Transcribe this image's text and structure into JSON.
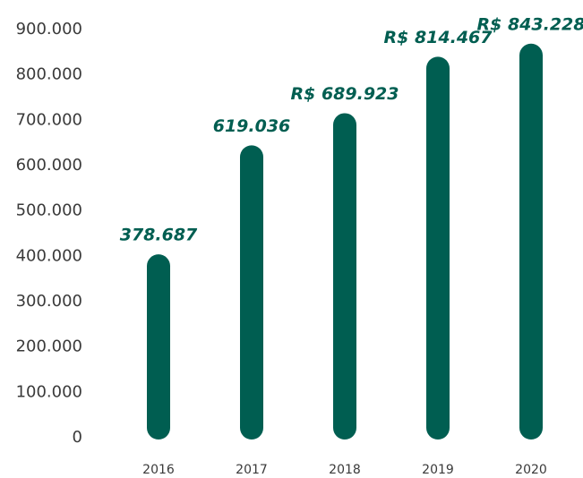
{
  "chart_data": {
    "type": "bar",
    "categories": [
      "2016",
      "2017",
      "2018",
      "2019",
      "2020"
    ],
    "values": [
      378687,
      619036,
      689923,
      814467,
      843228
    ],
    "value_labels": [
      "378.687",
      "619.036",
      "R$ 689.923",
      "R$ 814.467",
      "R$ 843.228"
    ],
    "color": "#005e51",
    "ylim": [
      0,
      900000
    ],
    "yticks": [
      0,
      {
        "value": 100000,
        "label": "100.000"
      },
      {
        "value": 200000,
        "label": "200.000"
      },
      {
        "value": 300000,
        "label": "300.000"
      },
      {
        "value": 400000,
        "label": "400.000"
      },
      {
        "value": 500000,
        "label": "500.000"
      },
      {
        "value": 600000,
        "label": "600.000"
      },
      {
        "value": 700000,
        "label": "700.000"
      },
      {
        "value": 800000,
        "label": "800.000"
      },
      {
        "value": 900000,
        "label": "900.000"
      }
    ],
    "grid": false
  }
}
